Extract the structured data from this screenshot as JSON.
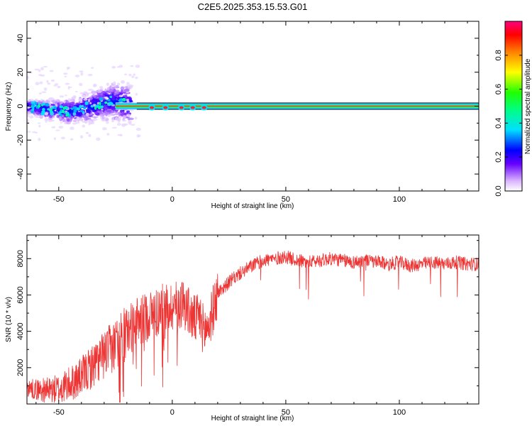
{
  "title": "C2E5.2025.353.15.53.G01",
  "chart_data": [
    {
      "type": "heatmap",
      "name": "spectrogram",
      "xlabel": "Height of straight line (km)",
      "ylabel": "Frequency (Hz)",
      "xlim": [
        -64,
        135
      ],
      "ylim": [
        -50,
        50
      ],
      "xticks": [
        -50,
        0,
        50,
        100
      ],
      "xtick_labels": [
        "-50",
        "0",
        "50",
        "100"
      ],
      "yticks": [
        -40,
        -20,
        0,
        20,
        40
      ],
      "ytick_labels": [
        "-40",
        "-20",
        "0",
        "20",
        "40"
      ],
      "colorbar": {
        "label": "Normalized spectral amplitude",
        "range": [
          0,
          1
        ],
        "ticks": [
          0.0,
          0.2,
          0.4,
          0.6,
          0.8
        ],
        "tick_labels": [
          "0.0",
          "0.2",
          "0.4",
          "0.6",
          "0.8"
        ]
      },
      "ridge": [
        [
          -64,
          0
        ],
        [
          -55,
          -2
        ],
        [
          -45,
          -3
        ],
        [
          -35,
          0
        ],
        [
          -28,
          3
        ],
        [
          -22,
          2
        ],
        [
          -15,
          0
        ],
        [
          -10,
          -1
        ],
        [
          0,
          0
        ],
        [
          10,
          -1
        ],
        [
          20,
          0
        ],
        [
          135,
          0
        ]
      ]
    },
    {
      "type": "line",
      "name": "snr",
      "xlabel": "Height of straight line (km)",
      "ylabel": "SNR (10 * v/v)",
      "xlim": [
        -64,
        135
      ],
      "ylim": [
        0,
        9300
      ],
      "xticks": [
        -50,
        0,
        50,
        100
      ],
      "xtick_labels": [
        "-50",
        "0",
        "50",
        "100"
      ],
      "yticks": [
        2000,
        4000,
        6000,
        8000
      ],
      "ytick_labels": [
        "2000",
        "4000",
        "6000",
        "8000"
      ],
      "color": "#ee3333",
      "x": [
        -64,
        -60,
        -55,
        -50,
        -45,
        -40,
        -35,
        -30,
        -25,
        -20,
        -18,
        -15,
        -10,
        -5,
        0,
        3,
        5,
        8,
        10,
        12,
        14,
        16,
        20,
        25,
        30,
        35,
        40,
        45,
        50,
        55,
        60,
        65,
        70,
        75,
        80,
        85,
        90,
        95,
        100,
        105,
        110,
        115,
        120,
        125,
        130,
        135
      ],
      "y": [
        900,
        800,
        750,
        800,
        1100,
        1500,
        2100,
        2700,
        3300,
        3900,
        4200,
        4500,
        4900,
        5200,
        5400,
        5500,
        5600,
        4900,
        4600,
        4800,
        4000,
        4300,
        6100,
        6700,
        7200,
        7600,
        7900,
        8000,
        8100,
        7900,
        7800,
        7900,
        8000,
        7900,
        7800,
        7900,
        7800,
        7700,
        7800,
        7600,
        7700,
        7800,
        7700,
        7800,
        7700,
        7700
      ]
    }
  ]
}
